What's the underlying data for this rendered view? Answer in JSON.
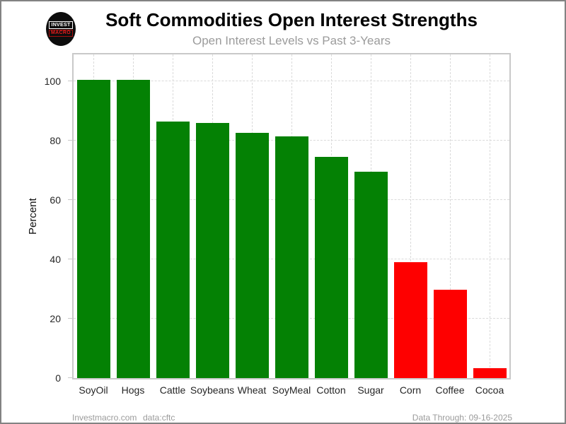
{
  "logo": {
    "line1": "INVEST",
    "line2": "MACRO"
  },
  "chart_data": {
    "type": "bar",
    "title": "Soft Commodities Open Interest Strengths",
    "subtitle": "Open Interest Levels vs Past 3-Years",
    "ylabel": "Percent",
    "categories": [
      "SoyOil",
      "Hogs",
      "Cattle",
      "Soybeans",
      "Wheat",
      "SoyMeal",
      "Cotton",
      "Sugar",
      "Corn",
      "Coffee",
      "Cocoa"
    ],
    "values": [
      100.4,
      100.4,
      86.4,
      86.0,
      82.6,
      81.4,
      74.5,
      69.5,
      39.0,
      29.8,
      3.3
    ],
    "bar_colors": [
      "#048104",
      "#048104",
      "#048104",
      "#048104",
      "#048104",
      "#048104",
      "#048104",
      "#048104",
      "#fe0000",
      "#fe0000",
      "#fe0000"
    ],
    "yticks": [
      0,
      20,
      40,
      60,
      80,
      100
    ],
    "ylim": [
      0,
      109
    ],
    "grid": "dashed",
    "legend": "none"
  },
  "footer": {
    "site": "Investmacro.com",
    "source": "data:cftc",
    "data_through": "Data Through: 09-16-2025"
  }
}
